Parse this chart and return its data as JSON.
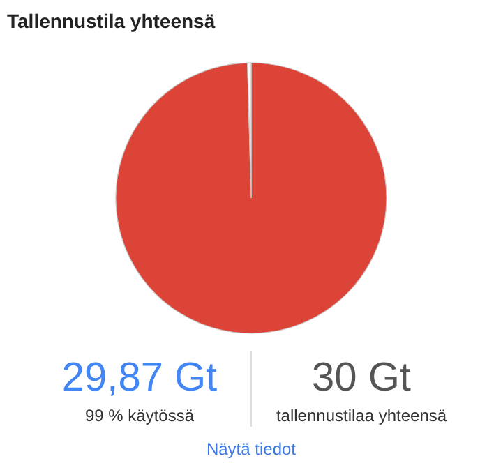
{
  "chart_data": {
    "type": "pie",
    "title": "Tallennustila yhteensä",
    "categories": [
      null,
      null
    ],
    "values": [
      99.57,
      0.43
    ],
    "colors": [
      "#db4437",
      "#f8f8f8"
    ],
    "annotations": [
      "29,87 Gt",
      "99 % käytössä",
      "30 Gt",
      "tallennustilaa yhteensä",
      "Näytä tiedot"
    ]
  }
}
